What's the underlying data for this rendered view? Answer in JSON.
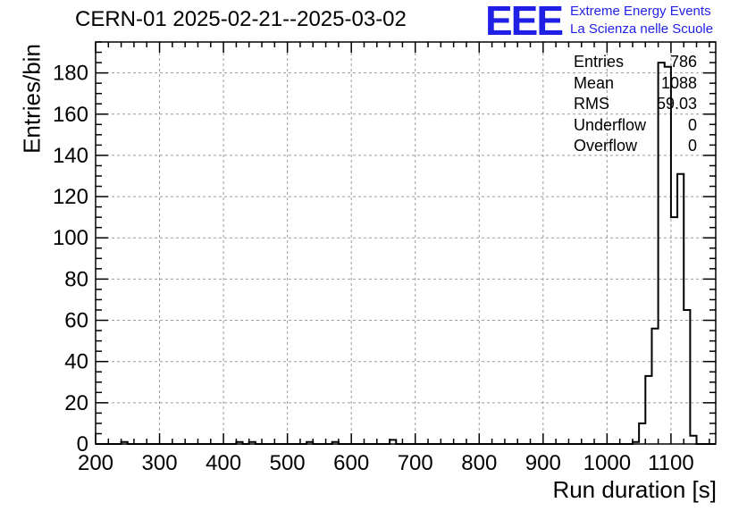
{
  "title": "CERN-01 2025-02-21--2025-03-02",
  "logo": {
    "text": "EEE",
    "line1": "Extreme Energy Events",
    "line2": "La Scienza nelle Scuole",
    "color": "#1f1fe6"
  },
  "stats": [
    {
      "label": "Entries",
      "value": "786"
    },
    {
      "label": "Mean",
      "value": "1088"
    },
    {
      "label": "RMS",
      "value": "59.03"
    },
    {
      "label": "Underflow",
      "value": "0"
    },
    {
      "label": "Overflow",
      "value": "0"
    }
  ],
  "chart_data": {
    "type": "bar",
    "histogram": true,
    "xlabel": "Run duration [s]",
    "ylabel": "Entries/bin",
    "xlim": [
      200,
      1170
    ],
    "ylim": [
      0,
      195
    ],
    "xticks": [
      200,
      300,
      400,
      500,
      600,
      700,
      800,
      900,
      1000,
      1100
    ],
    "yticks": [
      0,
      20,
      40,
      60,
      80,
      100,
      120,
      140,
      160,
      180
    ],
    "grid": true,
    "bin_width": 10,
    "bins": [
      {
        "x": 240,
        "y": 1
      },
      {
        "x": 420,
        "y": 1
      },
      {
        "x": 440,
        "y": 1
      },
      {
        "x": 530,
        "y": 1
      },
      {
        "x": 570,
        "y": 1
      },
      {
        "x": 660,
        "y": 2
      },
      {
        "x": 1040,
        "y": 1
      },
      {
        "x": 1050,
        "y": 10
      },
      {
        "x": 1060,
        "y": 33
      },
      {
        "x": 1070,
        "y": 56
      },
      {
        "x": 1080,
        "y": 185
      },
      {
        "x": 1090,
        "y": 183
      },
      {
        "x": 1100,
        "y": 110
      },
      {
        "x": 1110,
        "y": 131
      },
      {
        "x": 1120,
        "y": 65
      },
      {
        "x": 1130,
        "y": 4
      }
    ]
  }
}
